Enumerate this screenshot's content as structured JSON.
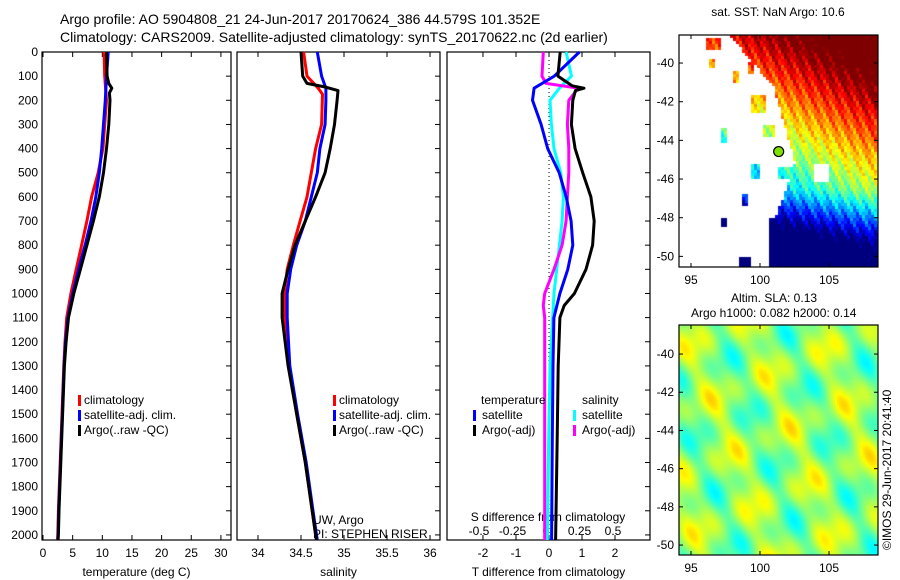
{
  "header": {
    "line1": "Argo profile: AO 5904808_21 24-Jun-2017 20170624_386 44.579S 101.352E",
    "line2": "Climatology: CARS2009. Satellite-adjusted climatology: synTS_20170622.nc (2d earlier)"
  },
  "credit": {
    "text": "UW, Argo",
    "pi": "PI: STEPHEN RISER",
    "copyright": "©IMOS 29-Jun-2017 20:41:40"
  },
  "chart_data": [
    {
      "id": "temperature",
      "type": "line",
      "xlabel": "temperature (deg C)",
      "ylabel": "",
      "xlim": [
        -0.17,
        31.7
      ],
      "ylim": [
        2021,
        0
      ],
      "xticks": [
        "0",
        "5",
        "10",
        "15",
        "20",
        "25",
        "30"
      ],
      "xtick_values": [
        0,
        5,
        10,
        15,
        20,
        25,
        30
      ],
      "yticks": [
        "0",
        "100",
        "200",
        "300",
        "400",
        "500",
        "600",
        "700",
        "800",
        "900",
        "1000",
        "1100",
        "1200",
        "1300",
        "1400",
        "1500",
        "1600",
        "1700",
        "1800",
        "1900",
        "2000"
      ],
      "ytick_values": [
        0,
        100,
        200,
        300,
        400,
        500,
        600,
        700,
        800,
        900,
        1000,
        1100,
        1200,
        1300,
        1400,
        1500,
        1600,
        1700,
        1800,
        1900,
        2000
      ],
      "legend_position": "lower-left",
      "series": [
        {
          "name": "climatology",
          "color": "#ff0000",
          "depth": [
            0,
            100,
            200,
            300,
            400,
            500,
            600,
            700,
            800,
            900,
            1000,
            1100,
            1200,
            1300,
            1500,
            1700,
            1900,
            2000,
            2021
          ],
          "values": [
            10.3,
            10.4,
            10.7,
            10.4,
            10.1,
            9.3,
            8.2,
            7.4,
            6.5,
            5.6,
            4.7,
            4.0,
            3.7,
            3.5,
            3.2,
            2.9,
            2.6,
            2.5,
            2.45
          ]
        },
        {
          "name": "satellite-adj. clim.",
          "color": "#0000ff",
          "depth": [
            0,
            100,
            200,
            300,
            400,
            500,
            600,
            700,
            800,
            900,
            1000,
            1100,
            1200,
            1300,
            1500,
            1700,
            1900,
            2000,
            2021
          ],
          "values": [
            11.0,
            10.7,
            10.5,
            10.2,
            9.9,
            9.5,
            8.9,
            8.1,
            7.1,
            6.0,
            5.0,
            4.2,
            3.8,
            3.55,
            3.25,
            2.95,
            2.65,
            2.55,
            2.5
          ]
        },
        {
          "name": "Argo(..raw -QC)",
          "color": "#000000",
          "depth": [
            0,
            100,
            130,
            150,
            170,
            200,
            300,
            400,
            500,
            600,
            700,
            800,
            900,
            1000,
            1100,
            1200,
            1300,
            1500,
            1700,
            1900,
            2000,
            2021
          ],
          "values": [
            10.7,
            10.8,
            11.1,
            11.6,
            11.2,
            11.3,
            11.1,
            10.7,
            10.2,
            9.5,
            8.5,
            7.4,
            6.3,
            5.2,
            4.3,
            3.9,
            3.6,
            3.3,
            3.0,
            2.7,
            2.6,
            2.55
          ]
        }
      ]
    },
    {
      "id": "salinity",
      "type": "line",
      "xlabel": "salinity",
      "xlim": [
        33.756,
        36.116
      ],
      "ylim": [
        2021,
        0
      ],
      "xticks": [
        "34",
        "34.5",
        "35",
        "35.5",
        "36"
      ],
      "xtick_values": [
        34,
        34.5,
        35,
        35.5,
        36
      ],
      "legend_position": "lower-right",
      "series": [
        {
          "name": "climatology",
          "color": "#ff0000",
          "depth": [
            0,
            100,
            150,
            175,
            300,
            400,
            500,
            600,
            700,
            800,
            900,
            1000,
            1100,
            1300,
            1500,
            1700,
            1900,
            2000,
            2021
          ],
          "values": [
            34.53,
            34.57,
            34.7,
            34.75,
            34.74,
            34.67,
            34.62,
            34.57,
            34.49,
            34.41,
            34.34,
            34.31,
            34.31,
            34.36,
            34.45,
            34.55,
            34.63,
            34.67,
            34.68
          ]
        },
        {
          "name": "satellite-adj. clim.",
          "color": "#0000ff",
          "depth": [
            0,
            100,
            150,
            200,
            300,
            400,
            500,
            600,
            700,
            800,
            900,
            1000,
            1100,
            1300,
            1500,
            1700,
            1900,
            2000,
            2021
          ],
          "values": [
            34.69,
            34.74,
            34.79,
            34.79,
            34.78,
            34.72,
            34.69,
            34.62,
            34.55,
            34.45,
            34.38,
            34.34,
            34.34,
            34.37,
            34.46,
            34.56,
            34.64,
            34.68,
            34.69
          ]
        },
        {
          "name": "Argo(..raw -QC)",
          "color": "#000000",
          "depth": [
            0,
            100,
            130,
            145,
            160,
            200,
            300,
            400,
            500,
            600,
            700,
            800,
            900,
            1000,
            1100,
            1300,
            1500,
            1700,
            1900,
            2000,
            2021
          ],
          "values": [
            34.5,
            34.52,
            34.57,
            34.78,
            34.93,
            34.92,
            34.89,
            34.84,
            34.78,
            34.67,
            34.55,
            34.43,
            34.35,
            34.28,
            34.28,
            34.35,
            34.45,
            34.55,
            34.63,
            34.67,
            34.68
          ]
        }
      ]
    },
    {
      "id": "difference",
      "type": "line",
      "xlabel": "T difference from climatology",
      "x2label": "S difference from climatology",
      "xlim": [
        -3.09,
        3.06
      ],
      "x2lim": [
        -0.5,
        0.5
      ],
      "xticks": [
        "-2",
        "-1",
        "0",
        "1",
        "2"
      ],
      "xtick_values": [
        -2,
        -1,
        0,
        1,
        2
      ],
      "x2ticks": [
        "-0.5",
        "-0.25",
        "0",
        "0.25",
        "0.5"
      ],
      "x2tick_values": [
        -0.5,
        -0.25,
        0,
        0.25,
        0.5
      ],
      "ylim": [
        2021,
        0
      ],
      "legend_titles": {
        "temperature": "temperature",
        "salinity": "salinity"
      },
      "series": [
        {
          "name": "satellite",
          "group": "salinity",
          "axis": "S",
          "color": "#00ffff",
          "depth": [
            0,
            100,
            150,
            200,
            300,
            400,
            500,
            600,
            700,
            800,
            900,
            1000,
            1100,
            1300,
            1600,
            2021
          ],
          "values": [
            0.15,
            0.19,
            0.1,
            0.03,
            0.04,
            0.06,
            0.11,
            0.13,
            0.12,
            0.1,
            0.08,
            0.06,
            0.05,
            0.03,
            0.02,
            0.01
          ]
        },
        {
          "name": "Argo(-adj)",
          "group": "salinity",
          "axis": "S",
          "color": "#ff00ff",
          "depth": [
            0,
            100,
            130,
            150,
            200,
            300,
            400,
            500,
            600,
            700,
            800,
            900,
            1000,
            1050,
            1100,
            1300,
            1600,
            2021
          ],
          "values": [
            -0.02,
            -0.03,
            0.0,
            0.24,
            0.17,
            0.16,
            0.17,
            0.17,
            0.16,
            0.15,
            0.12,
            0.06,
            -0.01,
            -0.02,
            -0.01,
            -0.01,
            -0.01,
            -0.01
          ]
        },
        {
          "name": "satellite",
          "group": "temperature",
          "axis": "T",
          "color": "#0000ff",
          "depth": [
            0,
            100,
            150,
            200,
            300,
            400,
            500,
            600,
            700,
            800,
            900,
            1000,
            1100,
            1300,
            1600,
            2021
          ],
          "values": [
            0.92,
            0.16,
            -0.45,
            -0.5,
            -0.24,
            -0.04,
            0.31,
            0.52,
            0.67,
            0.72,
            0.57,
            0.33,
            0.15,
            0.12,
            0.1,
            0.08
          ]
        },
        {
          "name": "Argo(-adj)",
          "group": "temperature",
          "axis": "T",
          "color": "#000000",
          "depth": [
            0,
            100,
            140,
            150,
            160,
            200,
            300,
            400,
            500,
            600,
            700,
            800,
            900,
            1000,
            1050,
            1100,
            1300,
            1600,
            2021
          ],
          "values": [
            0.34,
            0.27,
            0.7,
            1.06,
            0.8,
            0.72,
            0.68,
            0.79,
            1.02,
            1.27,
            1.37,
            1.32,
            1.12,
            0.77,
            0.46,
            0.33,
            0.28,
            0.25,
            0.2
          ]
        }
      ]
    },
    {
      "id": "sst-map",
      "type": "heatmap",
      "title": "sat. SST: NaN Argo: 10.6",
      "xlim": [
        94.13,
        108.55
      ],
      "ylim": [
        -50.55,
        -38.55
      ],
      "xticks": [
        "95",
        "100",
        "105"
      ],
      "xtick_values": [
        95,
        100,
        105
      ],
      "yticks": [
        "-40",
        "-42",
        "-44",
        "-46",
        "-48",
        "-50"
      ],
      "ytick_values": [
        -40,
        -42,
        -44,
        -46,
        -48,
        -50
      ],
      "marker": {
        "lon": 101.352,
        "lat": -44.579,
        "value": 10.6,
        "color": "#7fe000"
      }
    },
    {
      "id": "sla-map",
      "type": "heatmap",
      "title": "Altim. SLA: 0.13",
      "subtitle": "Argo h1000: 0.082 h2000: 0.14",
      "xlim": [
        94.13,
        108.55
      ],
      "ylim": [
        -50.52,
        -38.48
      ],
      "xticks": [
        "95",
        "100",
        "105"
      ],
      "xtick_values": [
        95,
        100,
        105
      ],
      "yticks": [
        "-40",
        "-42",
        "-44",
        "-46",
        "-48",
        "-50"
      ],
      "ytick_values": [
        -40,
        -42,
        -44,
        -46,
        -48,
        -50
      ]
    }
  ]
}
